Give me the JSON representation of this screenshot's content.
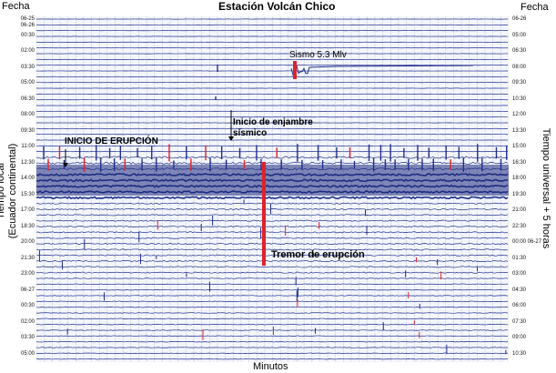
{
  "chart_data": {
    "type": "heatmap",
    "title": "Estación Volcán Chico",
    "xlabel": "Minutos",
    "ylabel_left": "Tiempo local\n(Ecuador continental)",
    "ylabel_right": "Tiempo universal + 5 horas",
    "header_left": "Fecha",
    "header_right": "Fecha",
    "left_ticks": [
      "06-25\n06-26",
      "00:30",
      "02:00",
      "03:30",
      "05:00",
      "06:30",
      "08:00",
      "09:30",
      "11:00",
      "12:30",
      "14:00",
      "15:30",
      "17:00",
      "18:30",
      "20:00",
      "21:30",
      "23:00",
      "06-27",
      "00:30",
      "02:00",
      "03:30",
      "05:00"
    ],
    "right_ticks": [
      "06-26",
      "05:00",
      "06:30",
      "08:00",
      "09:30",
      "10:30",
      "12:00",
      "13:30",
      "15:00",
      "16:30",
      "18:00",
      "19:30",
      "21:00",
      "22:30",
      "00:00 06-27",
      "01:30",
      "03:00",
      "04:30",
      "06:00",
      "07:30",
      "09:00",
      "10:30"
    ],
    "annotations": {
      "sismo": "Sismo 5.3 Mlv",
      "enjambre_1": "Inicio de enjambre",
      "enjambre_2": "sísmico",
      "erupcion": "INICIO DE ERUPCIÓN",
      "tremor": "Tremor de erupción"
    },
    "colors": {
      "trace_blue": "#1f2f8c",
      "trace_red": "#e0222a",
      "grid": "#9aa3c7"
    }
  }
}
